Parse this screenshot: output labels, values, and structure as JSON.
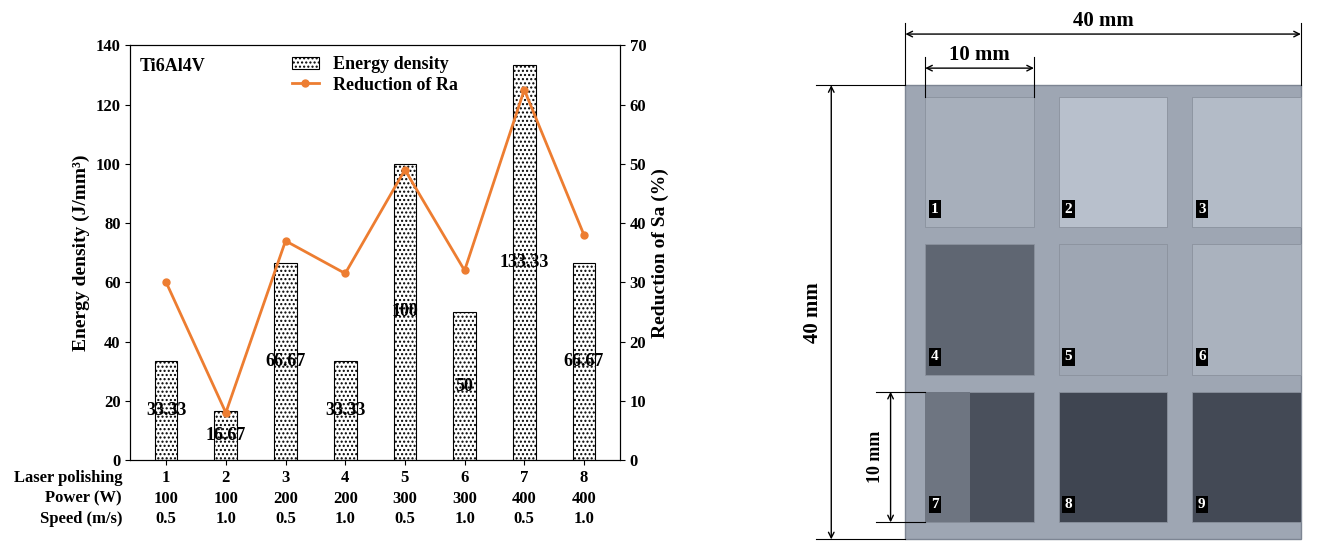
{
  "chart_data": {
    "type": "bar",
    "annotations": [
      "Ti6Al4V"
    ],
    "y_label": "Energy density (J/mm³)",
    "y2_label": "Reduction of Sa (%)",
    "category_label": "Laser polishing",
    "categories": [
      "1",
      "2",
      "3",
      "4",
      "5",
      "6",
      "7",
      "8"
    ],
    "category_rows": [
      {
        "label": "Power (W)",
        "values": [
          "100",
          "100",
          "200",
          "200",
          "300",
          "300",
          "400",
          "400"
        ]
      },
      {
        "label": "Speed (m/s)",
        "values": [
          "0.5",
          "1.0",
          "0.5",
          "1.0",
          "0.5",
          "1.0",
          "0.5",
          "1.0"
        ]
      }
    ],
    "series": [
      {
        "name": "Energy density",
        "type": "bar",
        "color": "#ffffff",
        "data_labels": true,
        "values": [
          33.33,
          16.67,
          66.67,
          33.33,
          100,
          50,
          133.33,
          66.67
        ]
      },
      {
        "name": "Reduction of Ra",
        "type": "line",
        "axis": "y2",
        "color": "#ed7d31",
        "marker": "circle",
        "line_style": "solid",
        "values": [
          30,
          8,
          37,
          31.5,
          49,
          32,
          62.5,
          38
        ]
      }
    ],
    "ylim": [
      0,
      140
    ],
    "yticks": [
      0,
      20,
      40,
      60,
      80,
      100,
      120,
      140
    ],
    "y2lim": [
      0,
      70
    ],
    "y2ticks": [
      0,
      10,
      20,
      30,
      40,
      50,
      60,
      70
    ],
    "legend": "upper center"
  },
  "sample_image": {
    "width_label": "40 mm",
    "height_label": "40 mm",
    "cell_width_label": "10 mm",
    "cell_height_label": "10 mm",
    "cell_labels": [
      "1",
      "2",
      "3",
      "4",
      "5",
      "6",
      "7",
      "8",
      "9"
    ]
  }
}
